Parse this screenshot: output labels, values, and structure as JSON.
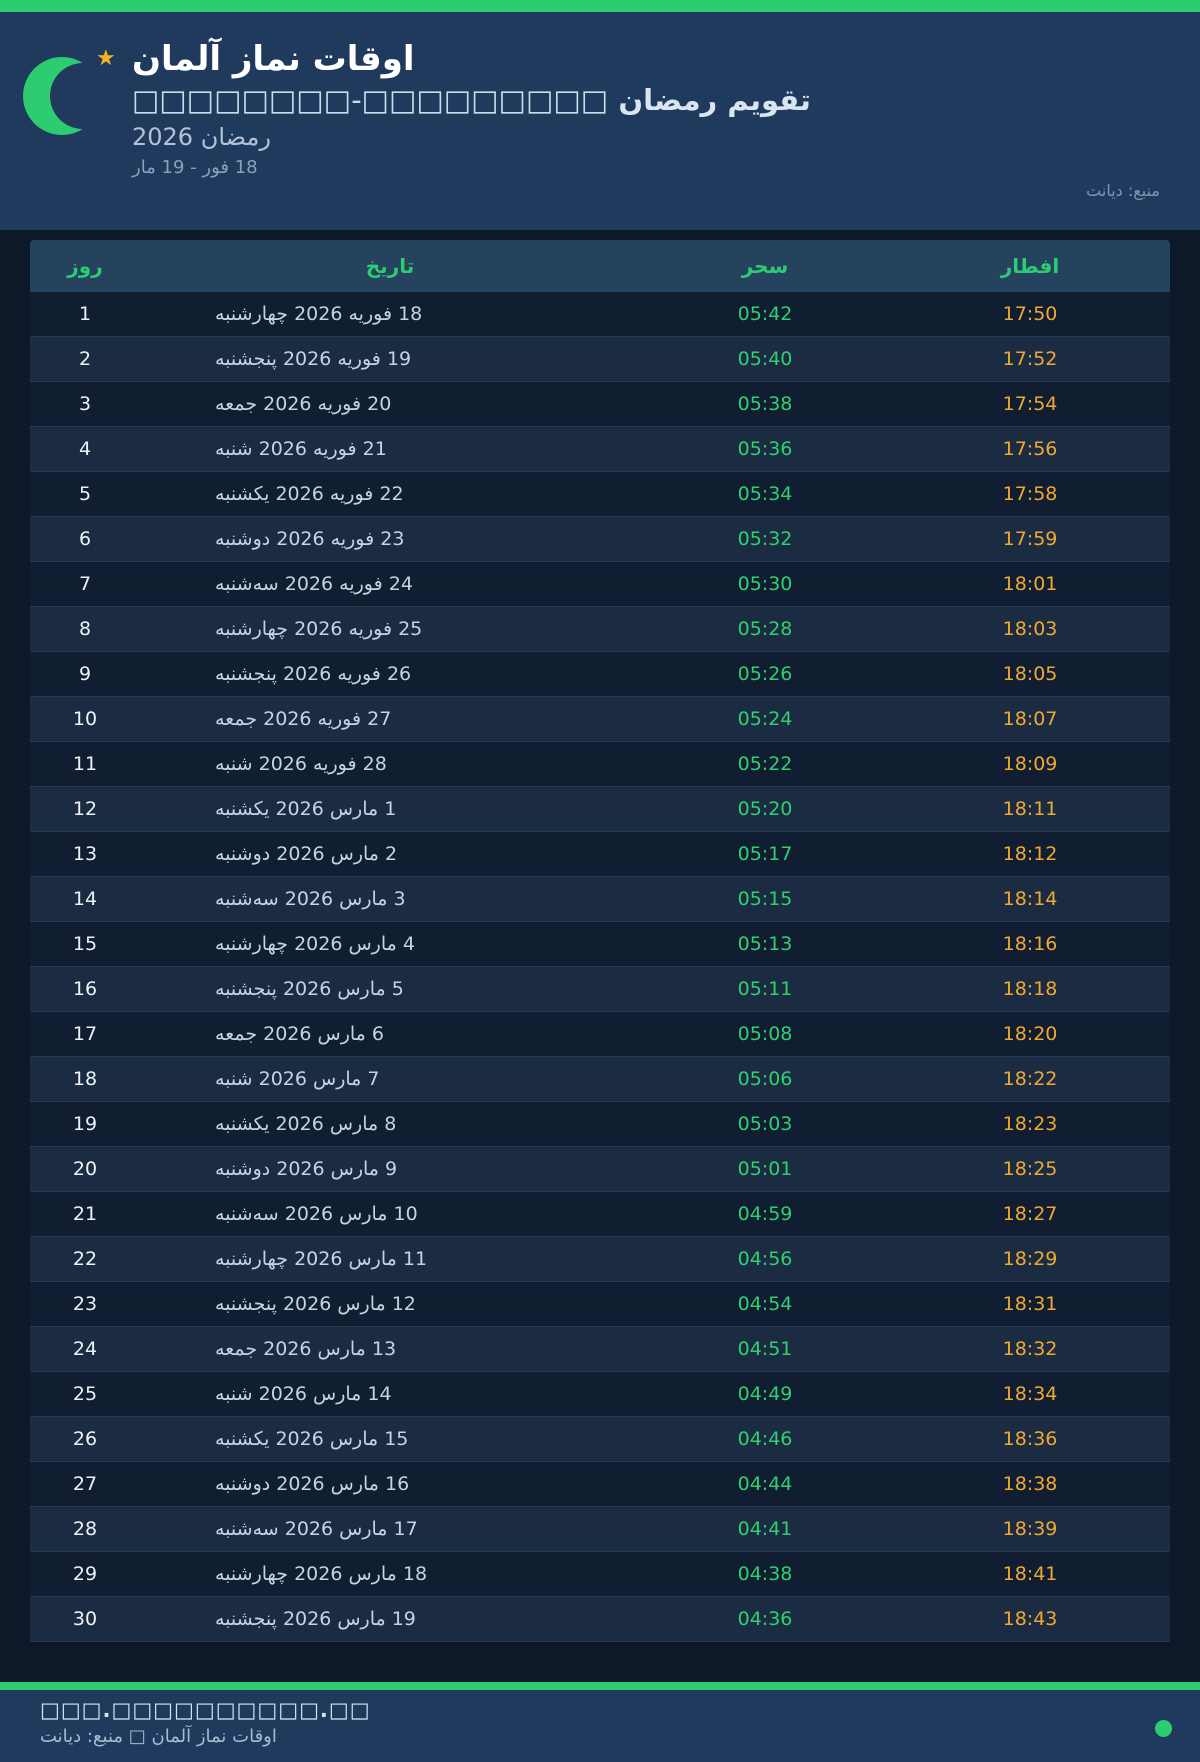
{
  "header": {
    "title": "اوقات نماز آلمان",
    "subtitle_arabic": "تقویم رمضان",
    "subtitle_boxes": "□□□□□□□□□-□□□□□□□□",
    "season": "رمضان 2026",
    "date_range": "18 فور - 19 مار",
    "source": "منبع: دیانت",
    "star_glyph": "★"
  },
  "icons": {
    "logo": "crescent-moon",
    "star": "star",
    "footer_status": "green-dot"
  },
  "colors": {
    "accent_green": "#2ecc71",
    "header_bg": "#203a5d",
    "page_bg": "#0d1828",
    "row_alt_bg": "#1b2c42",
    "sahar_time": "#2fd06e",
    "iftar_time": "#f0a930"
  },
  "table": {
    "columns": [
      {
        "key": "day",
        "label": "روز"
      },
      {
        "key": "date",
        "label": "تاریخ"
      },
      {
        "key": "sahar",
        "label": "سحر"
      },
      {
        "key": "iftar",
        "label": "افطار"
      }
    ],
    "rows": [
      {
        "day": "1",
        "date": "18 فوریه 2026 چهارشنبه",
        "sahar": "05:42",
        "iftar": "17:50"
      },
      {
        "day": "2",
        "date": "19 فوریه 2026 پنجشنبه",
        "sahar": "05:40",
        "iftar": "17:52"
      },
      {
        "day": "3",
        "date": "20 فوریه 2026 جمعه",
        "sahar": "05:38",
        "iftar": "17:54"
      },
      {
        "day": "4",
        "date": "21 فوریه 2026 شنبه",
        "sahar": "05:36",
        "iftar": "17:56"
      },
      {
        "day": "5",
        "date": "22 فوریه 2026 یکشنبه",
        "sahar": "05:34",
        "iftar": "17:58"
      },
      {
        "day": "6",
        "date": "23 فوریه 2026 دوشنبه",
        "sahar": "05:32",
        "iftar": "17:59"
      },
      {
        "day": "7",
        "date": "24 فوریه 2026 سه‌شنبه",
        "sahar": "05:30",
        "iftar": "18:01"
      },
      {
        "day": "8",
        "date": "25 فوریه 2026 چهارشنبه",
        "sahar": "05:28",
        "iftar": "18:03"
      },
      {
        "day": "9",
        "date": "26 فوریه 2026 پنجشنبه",
        "sahar": "05:26",
        "iftar": "18:05"
      },
      {
        "day": "10",
        "date": "27 فوریه 2026 جمعه",
        "sahar": "05:24",
        "iftar": "18:07"
      },
      {
        "day": "11",
        "date": "28 فوریه 2026 شنبه",
        "sahar": "05:22",
        "iftar": "18:09"
      },
      {
        "day": "12",
        "date": "1 مارس 2026 یکشنبه",
        "sahar": "05:20",
        "iftar": "18:11"
      },
      {
        "day": "13",
        "date": "2 مارس 2026 دوشنبه",
        "sahar": "05:17",
        "iftar": "18:12"
      },
      {
        "day": "14",
        "date": "3 مارس 2026 سه‌شنبه",
        "sahar": "05:15",
        "iftar": "18:14"
      },
      {
        "day": "15",
        "date": "4 مارس 2026 چهارشنبه",
        "sahar": "05:13",
        "iftar": "18:16"
      },
      {
        "day": "16",
        "date": "5 مارس 2026 پنجشنبه",
        "sahar": "05:11",
        "iftar": "18:18"
      },
      {
        "day": "17",
        "date": "6 مارس 2026 جمعه",
        "sahar": "05:08",
        "iftar": "18:20"
      },
      {
        "day": "18",
        "date": "7 مارس 2026 شنبه",
        "sahar": "05:06",
        "iftar": "18:22"
      },
      {
        "day": "19",
        "date": "8 مارس 2026 یکشنبه",
        "sahar": "05:03",
        "iftar": "18:23"
      },
      {
        "day": "20",
        "date": "9 مارس 2026 دوشنبه",
        "sahar": "05:01",
        "iftar": "18:25"
      },
      {
        "day": "21",
        "date": "10 مارس 2026 سه‌شنبه",
        "sahar": "04:59",
        "iftar": "18:27"
      },
      {
        "day": "22",
        "date": "11 مارس 2026 چهارشنبه",
        "sahar": "04:56",
        "iftar": "18:29"
      },
      {
        "day": "23",
        "date": "12 مارس 2026 پنجشنبه",
        "sahar": "04:54",
        "iftar": "18:31"
      },
      {
        "day": "24",
        "date": "13 مارس 2026 جمعه",
        "sahar": "04:51",
        "iftar": "18:32"
      },
      {
        "day": "25",
        "date": "14 مارس 2026 شنبه",
        "sahar": "04:49",
        "iftar": "18:34"
      },
      {
        "day": "26",
        "date": "15 مارس 2026 یکشنبه",
        "sahar": "04:46",
        "iftar": "18:36"
      },
      {
        "day": "27",
        "date": "16 مارس 2026 دوشنبه",
        "sahar": "04:44",
        "iftar": "18:38"
      },
      {
        "day": "28",
        "date": "17 مارس 2026 سه‌شنبه",
        "sahar": "04:41",
        "iftar": "18:39"
      },
      {
        "day": "29",
        "date": "18 مارس 2026 چهارشنبه",
        "sahar": "04:38",
        "iftar": "18:41"
      },
      {
        "day": "30",
        "date": "19 مارس 2026 پنجشنبه",
        "sahar": "04:36",
        "iftar": "18:43"
      }
    ]
  },
  "footer": {
    "line1": "□□□.□□□□□□□□□□.□□",
    "line2": "اوقات نماز آلمان □ منبع: دیانت"
  }
}
